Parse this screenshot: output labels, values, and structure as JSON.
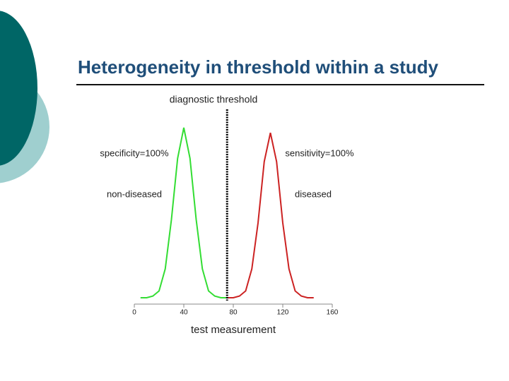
{
  "chart_data": {
    "type": "line",
    "title": "Heterogeneity in threshold within a study",
    "xlabel": "test measurement",
    "xlim": [
      0,
      160
    ],
    "xticks": [
      0,
      40,
      80,
      120,
      160
    ],
    "ylim": [
      0,
      1
    ],
    "threshold": {
      "value": 75,
      "label": "diagnostic threshold"
    },
    "annotations": [
      "specificity=100%",
      "non-diseased",
      "sensitivity=100%",
      "diseased"
    ],
    "series": [
      {
        "name": "non-diseased",
        "color": "#33dd33",
        "x": [
          5,
          10,
          15,
          20,
          25,
          30,
          35,
          40,
          45,
          50,
          55,
          60,
          65,
          70,
          75
        ],
        "values": [
          0,
          0,
          0.01,
          0.04,
          0.17,
          0.46,
          0.82,
          1,
          0.82,
          0.46,
          0.17,
          0.04,
          0.01,
          0,
          0
        ]
      },
      {
        "name": "diseased",
        "color": "#cc2222",
        "x": [
          75,
          80,
          85,
          90,
          95,
          100,
          105,
          110,
          115,
          120,
          125,
          130,
          135,
          140,
          145
        ],
        "values": [
          0,
          0,
          0.01,
          0.04,
          0.17,
          0.44,
          0.8,
          0.97,
          0.8,
          0.44,
          0.17,
          0.04,
          0.01,
          0,
          0
        ]
      }
    ]
  }
}
